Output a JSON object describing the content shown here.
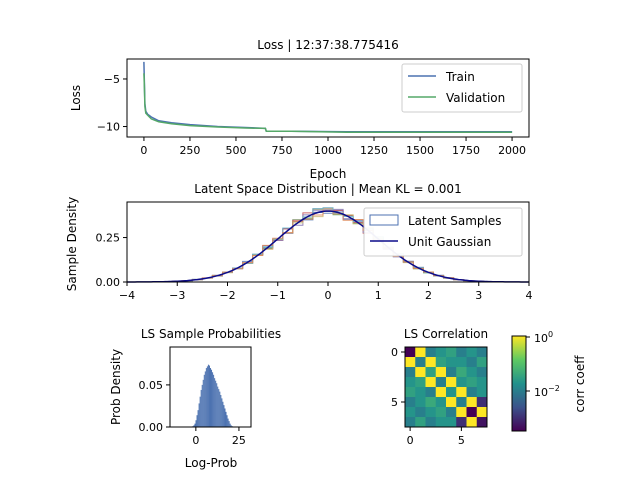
{
  "chart_data": [
    {
      "type": "line",
      "title": "Loss | 12:37:38.775416",
      "xlabel": "Epoch",
      "ylabel": "Loss",
      "xlim": [
        -92,
        2092
      ],
      "ylim": [
        -11.1,
        -2.9
      ],
      "xticks": [
        0,
        250,
        500,
        750,
        1000,
        1250,
        1500,
        1750,
        2000
      ],
      "yticks": [
        -5,
        -10
      ],
      "legend_position": "top-right",
      "series": [
        {
          "name": "Train",
          "color": "#4c72b0",
          "x": [
            0,
            2,
            5,
            10,
            20,
            40,
            80,
            150,
            250,
            400,
            550,
            660,
            665,
            800,
            1100,
            1500,
            2000
          ],
          "y": [
            -3.2,
            -5.0,
            -7.6,
            -8.4,
            -8.7,
            -9.0,
            -9.4,
            -9.6,
            -9.8,
            -10.0,
            -10.1,
            -10.2,
            -10.5,
            -10.5,
            -10.55,
            -10.55,
            -10.55
          ]
        },
        {
          "name": "Validation",
          "color": "#55a868",
          "x": [
            0,
            2,
            5,
            10,
            20,
            40,
            80,
            150,
            250,
            400,
            550,
            660,
            665,
            800,
            1100,
            1500,
            2000
          ],
          "y": [
            -4.4,
            -5.5,
            -7.9,
            -8.6,
            -8.8,
            -9.2,
            -9.5,
            -9.7,
            -9.9,
            -10.05,
            -10.15,
            -10.2,
            -10.5,
            -10.5,
            -10.6,
            -10.6,
            -10.6
          ]
        }
      ]
    },
    {
      "type": "area",
      "title": "Latent Space Distribution | Mean KL = 0.001",
      "xlabel": "",
      "ylabel": "Sample Density",
      "xlim": [
        -4,
        4
      ],
      "ylim": [
        0,
        0.45
      ],
      "xticks": [
        -4,
        -3,
        -2,
        -1,
        0,
        1,
        2,
        3,
        4
      ],
      "yticks": [
        0.0,
        0.25
      ],
      "ytick_labels": [
        "0.00",
        "0.25"
      ],
      "legend_position": "top-right",
      "legend": [
        "Latent Samples",
        "Unit Gaussian"
      ],
      "histogram_colors": [
        "#4c72b0",
        "#55a868",
        "#c44e52",
        "#8172b2",
        "#ccb974",
        "#64b5cd",
        "#dd8452"
      ],
      "gaussian_color": "#0b0b8a",
      "bins": [
        -3.1,
        -2.9,
        -2.7,
        -2.5,
        -2.3,
        -2.1,
        -1.9,
        -1.7,
        -1.5,
        -1.3,
        -1.1,
        -0.9,
        -0.7,
        -0.5,
        -0.3,
        -0.1,
        0.1,
        0.3,
        0.5,
        0.7,
        0.9,
        1.1,
        1.3,
        1.5,
        1.7,
        1.9,
        2.1,
        2.3,
        2.5,
        2.7,
        2.9,
        3.1
      ],
      "gaussian_mean": 0,
      "gaussian_std": 1
    },
    {
      "type": "bar",
      "title": "LS Sample Probabilities",
      "xlabel": "Log-Prob",
      "ylabel": "Prob Density",
      "xlim": [
        -15,
        32
      ],
      "ylim": [
        0,
        0.095
      ],
      "xticks": [
        0,
        25
      ],
      "yticks": [
        0.0,
        0.05
      ],
      "ytick_labels": [
        "0.00",
        "0.05"
      ],
      "color": "#4c72b0",
      "bin_start": -2,
      "bin_width": 0.6,
      "values": [
        0.001,
        0.002,
        0.004,
        0.008,
        0.014,
        0.02,
        0.028,
        0.036,
        0.044,
        0.05,
        0.056,
        0.062,
        0.066,
        0.07,
        0.072,
        0.074,
        0.073,
        0.07,
        0.068,
        0.065,
        0.062,
        0.058,
        0.055,
        0.052,
        0.048,
        0.045,
        0.042,
        0.038,
        0.034,
        0.03,
        0.026,
        0.022,
        0.018,
        0.014,
        0.01,
        0.007,
        0.004,
        0.002,
        0.001
      ]
    },
    {
      "type": "heatmap",
      "title": "LS Correlation",
      "xlabel": "",
      "ylabel": "",
      "xticks": [
        0,
        5
      ],
      "yticks": [
        0,
        5
      ],
      "colormap": [
        "#440154",
        "#3b528b",
        "#21918c",
        "#5ec962",
        "#fde725"
      ],
      "colorbar_label": "corr coeff",
      "colorbar_ticks": [
        "10^0",
        "10^-2"
      ],
      "matrix": [
        [
          0.0,
          1.0,
          0.01,
          0.02,
          0.03,
          0.01,
          0.02,
          0.01
        ],
        [
          1.0,
          0.01,
          1.0,
          0.03,
          0.02,
          0.02,
          0.01,
          0.03
        ],
        [
          0.01,
          1.0,
          0.03,
          1.0,
          0.01,
          0.04,
          0.02,
          0.01
        ],
        [
          0.02,
          0.03,
          1.0,
          0.01,
          1.0,
          0.02,
          0.03,
          0.02
        ],
        [
          0.03,
          0.02,
          0.01,
          1.0,
          0.02,
          1.0,
          0.01,
          0.02
        ],
        [
          0.01,
          0.02,
          0.04,
          0.02,
          1.0,
          0.01,
          1.0,
          0.001
        ],
        [
          0.02,
          0.01,
          0.02,
          0.03,
          0.01,
          1.0,
          0.0003,
          1.0
        ],
        [
          0.01,
          0.03,
          0.01,
          0.02,
          0.02,
          0.001,
          1.0,
          0.0005
        ]
      ]
    }
  ]
}
